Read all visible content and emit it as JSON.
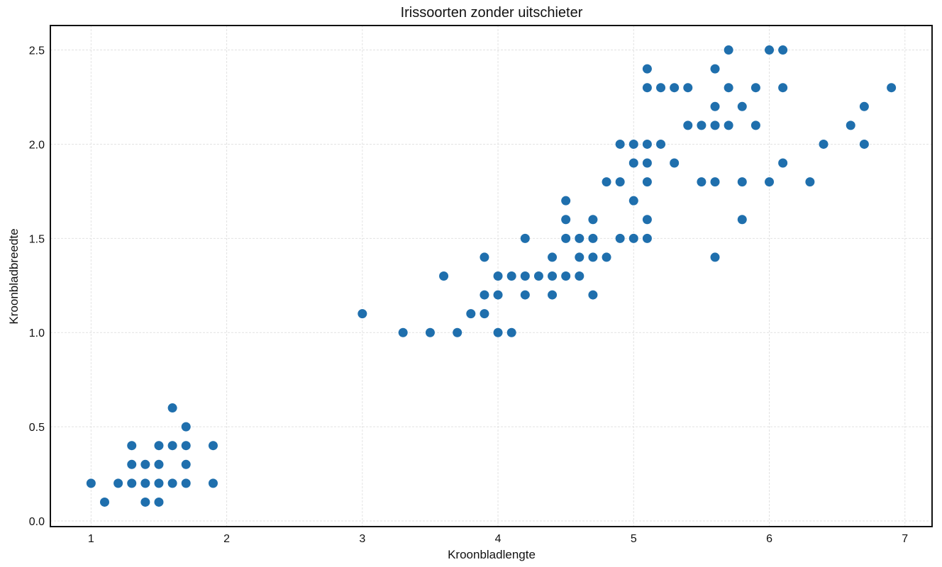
{
  "chart_data": {
    "type": "scatter",
    "title": "Irissoorten zonder uitschieter",
    "xlabel": "Kroonbladlengte",
    "ylabel": "Kroonbladbreedte",
    "xlim": [
      0.7,
      7.2
    ],
    "ylim": [
      -0.03,
      2.63
    ],
    "xticks": [
      1,
      2,
      3,
      4,
      5,
      6,
      7
    ],
    "yticks": [
      0.0,
      0.5,
      1.0,
      1.5,
      2.0,
      2.5
    ],
    "ytick_labels": [
      "0.0",
      "0.5",
      "1.0",
      "1.5",
      "2.0",
      "2.5"
    ],
    "xtick_labels": [
      "1",
      "2",
      "3",
      "4",
      "5",
      "6",
      "7"
    ],
    "grid": true,
    "marker_color": "#1f6fad",
    "points": [
      [
        1.0,
        0.2
      ],
      [
        1.1,
        0.1
      ],
      [
        1.2,
        0.2
      ],
      [
        1.3,
        0.2
      ],
      [
        1.3,
        0.3
      ],
      [
        1.3,
        0.4
      ],
      [
        1.4,
        0.1
      ],
      [
        1.4,
        0.2
      ],
      [
        1.4,
        0.3
      ],
      [
        1.5,
        0.1
      ],
      [
        1.5,
        0.2
      ],
      [
        1.5,
        0.3
      ],
      [
        1.5,
        0.4
      ],
      [
        1.6,
        0.2
      ],
      [
        1.6,
        0.4
      ],
      [
        1.6,
        0.6
      ],
      [
        1.7,
        0.2
      ],
      [
        1.7,
        0.3
      ],
      [
        1.7,
        0.4
      ],
      [
        1.7,
        0.5
      ],
      [
        1.9,
        0.2
      ],
      [
        1.9,
        0.4
      ],
      [
        3.0,
        1.1
      ],
      [
        3.3,
        1.0
      ],
      [
        3.5,
        1.0
      ],
      [
        3.6,
        1.3
      ],
      [
        3.7,
        1.0
      ],
      [
        3.8,
        1.1
      ],
      [
        3.9,
        1.1
      ],
      [
        3.9,
        1.2
      ],
      [
        3.9,
        1.4
      ],
      [
        4.0,
        1.0
      ],
      [
        4.0,
        1.2
      ],
      [
        4.0,
        1.3
      ],
      [
        4.1,
        1.0
      ],
      [
        4.1,
        1.3
      ],
      [
        4.2,
        1.2
      ],
      [
        4.2,
        1.3
      ],
      [
        4.2,
        1.5
      ],
      [
        4.3,
        1.3
      ],
      [
        4.4,
        1.2
      ],
      [
        4.4,
        1.3
      ],
      [
        4.4,
        1.4
      ],
      [
        4.5,
        1.3
      ],
      [
        4.5,
        1.5
      ],
      [
        4.5,
        1.6
      ],
      [
        4.5,
        1.7
      ],
      [
        4.6,
        1.3
      ],
      [
        4.6,
        1.4
      ],
      [
        4.6,
        1.5
      ],
      [
        4.7,
        1.2
      ],
      [
        4.7,
        1.4
      ],
      [
        4.7,
        1.5
      ],
      [
        4.7,
        1.6
      ],
      [
        4.8,
        1.4
      ],
      [
        4.8,
        1.8
      ],
      [
        4.9,
        1.5
      ],
      [
        4.9,
        1.8
      ],
      [
        4.9,
        2.0
      ],
      [
        5.0,
        1.5
      ],
      [
        5.0,
        1.7
      ],
      [
        5.0,
        1.9
      ],
      [
        5.0,
        2.0
      ],
      [
        5.1,
        1.5
      ],
      [
        5.1,
        1.6
      ],
      [
        5.1,
        1.8
      ],
      [
        5.1,
        1.9
      ],
      [
        5.1,
        2.0
      ],
      [
        5.1,
        2.3
      ],
      [
        5.1,
        2.4
      ],
      [
        5.2,
        2.0
      ],
      [
        5.2,
        2.3
      ],
      [
        5.3,
        1.9
      ],
      [
        5.3,
        2.3
      ],
      [
        5.4,
        2.1
      ],
      [
        5.4,
        2.3
      ],
      [
        5.5,
        1.8
      ],
      [
        5.5,
        2.1
      ],
      [
        5.6,
        1.4
      ],
      [
        5.6,
        1.8
      ],
      [
        5.6,
        2.1
      ],
      [
        5.6,
        2.2
      ],
      [
        5.6,
        2.4
      ],
      [
        5.7,
        2.1
      ],
      [
        5.7,
        2.3
      ],
      [
        5.7,
        2.5
      ],
      [
        5.8,
        1.6
      ],
      [
        5.8,
        1.8
      ],
      [
        5.8,
        2.2
      ],
      [
        5.9,
        2.1
      ],
      [
        5.9,
        2.3
      ],
      [
        6.0,
        1.8
      ],
      [
        6.0,
        2.5
      ],
      [
        6.1,
        1.9
      ],
      [
        6.1,
        2.3
      ],
      [
        6.1,
        2.5
      ],
      [
        6.3,
        1.8
      ],
      [
        6.4,
        2.0
      ],
      [
        6.6,
        2.1
      ],
      [
        6.7,
        2.0
      ],
      [
        6.7,
        2.2
      ],
      [
        6.9,
        2.3
      ]
    ]
  }
}
